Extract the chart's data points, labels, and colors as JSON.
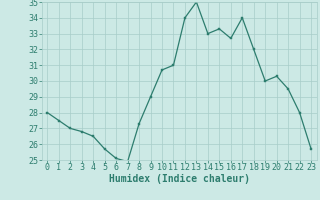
{
  "x": [
    0,
    1,
    2,
    3,
    4,
    5,
    6,
    7,
    8,
    9,
    10,
    11,
    12,
    13,
    14,
    15,
    16,
    17,
    18,
    19,
    20,
    21,
    22,
    23
  ],
  "y": [
    28.0,
    27.5,
    27.0,
    26.8,
    26.5,
    25.7,
    25.1,
    24.9,
    27.3,
    29.0,
    30.7,
    31.0,
    34.0,
    35.0,
    33.0,
    33.3,
    32.7,
    34.0,
    32.0,
    30.0,
    30.3,
    29.5,
    28.0,
    25.7
  ],
  "xlabel": "Humidex (Indice chaleur)",
  "ylim": [
    25,
    35
  ],
  "xlim": [
    -0.5,
    23.5
  ],
  "yticks": [
    25,
    26,
    27,
    28,
    29,
    30,
    31,
    32,
    33,
    34,
    35
  ],
  "xticks": [
    0,
    1,
    2,
    3,
    4,
    5,
    6,
    7,
    8,
    9,
    10,
    11,
    12,
    13,
    14,
    15,
    16,
    17,
    18,
    19,
    20,
    21,
    22,
    23
  ],
  "line_color": "#2d7d6e",
  "marker_color": "#2d7d6e",
  "bg_color": "#cce9e5",
  "grid_color": "#a8cdc9",
  "tick_label_color": "#2d7d6e",
  "xlabel_color": "#2d7d6e",
  "xlabel_fontsize": 7,
  "tick_fontsize": 6,
  "marker_size": 2.0,
  "line_width": 0.9
}
